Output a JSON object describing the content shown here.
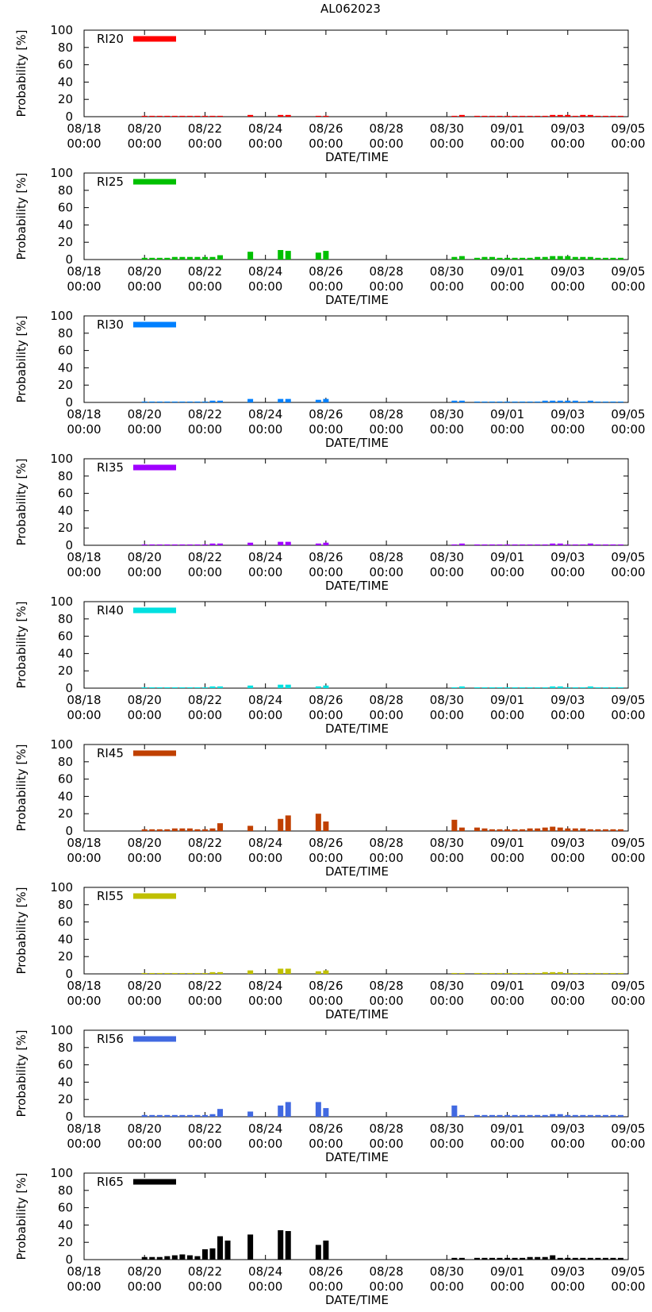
{
  "page": {
    "title": "AL062023"
  },
  "axes": {
    "xlabel": "DATE/TIME",
    "ylabel": "Probability [%]",
    "ylim": [
      0,
      100
    ],
    "yticks": [
      0,
      20,
      40,
      60,
      80,
      100
    ],
    "xrange_days": [
      0,
      18
    ],
    "xticks": [
      {
        "day": 0,
        "date": "08/18",
        "time": "00:00"
      },
      {
        "day": 2,
        "date": "08/20",
        "time": "00:00"
      },
      {
        "day": 4,
        "date": "08/22",
        "time": "00:00"
      },
      {
        "day": 6,
        "date": "08/24",
        "time": "00:00"
      },
      {
        "day": 8,
        "date": "08/26",
        "time": "00:00"
      },
      {
        "day": 10,
        "date": "08/28",
        "time": "00:00"
      },
      {
        "day": 12,
        "date": "08/30",
        "time": "00:00"
      },
      {
        "day": 14,
        "date": "09/01",
        "time": "00:00"
      },
      {
        "day": 16,
        "date": "09/03",
        "time": "00:00"
      },
      {
        "day": 18,
        "date": "09/05",
        "time": "00:00"
      }
    ]
  },
  "chart_data": [
    {
      "type": "bar",
      "label": "RI20",
      "color": "#ff0000",
      "x_days": [
        2.0,
        2.25,
        2.5,
        2.75,
        3.0,
        3.25,
        3.5,
        3.75,
        4.0,
        4.25,
        4.5,
        5.5,
        6.5,
        6.75,
        7.75,
        8.0,
        12.25,
        12.5,
        13.0,
        13.25,
        13.5,
        13.75,
        14.0,
        14.25,
        14.5,
        14.75,
        15.0,
        15.25,
        15.5,
        15.75,
        16.0,
        16.25,
        16.5,
        16.75,
        17.0,
        17.25,
        17.5,
        17.75
      ],
      "values": [
        1,
        1,
        1,
        1,
        1,
        1,
        1,
        1,
        1,
        1,
        1,
        2,
        2,
        2,
        1,
        1,
        1,
        2,
        1,
        1,
        1,
        1,
        1,
        1,
        1,
        1,
        1,
        1,
        2,
        2,
        2,
        1,
        2,
        2,
        1,
        1,
        1,
        1
      ]
    },
    {
      "type": "bar",
      "label": "RI25",
      "color": "#00c000",
      "x_days": [
        2.0,
        2.25,
        2.5,
        2.75,
        3.0,
        3.25,
        3.5,
        3.75,
        4.0,
        4.25,
        4.5,
        5.5,
        6.5,
        6.75,
        7.75,
        8.0,
        12.25,
        12.5,
        13.0,
        13.25,
        13.5,
        13.75,
        14.0,
        14.25,
        14.5,
        14.75,
        15.0,
        15.25,
        15.5,
        15.75,
        16.0,
        16.25,
        16.5,
        16.75,
        17.0,
        17.25,
        17.5,
        17.75
      ],
      "values": [
        2,
        2,
        2,
        2,
        3,
        3,
        3,
        3,
        3,
        3,
        5,
        9,
        11,
        10,
        8,
        10,
        3,
        4,
        2,
        3,
        3,
        2,
        2,
        2,
        2,
        2,
        3,
        3,
        4,
        4,
        4,
        3,
        3,
        3,
        2,
        2,
        2,
        2
      ]
    },
    {
      "type": "bar",
      "label": "RI30",
      "color": "#0080ff",
      "x_days": [
        2.0,
        2.25,
        2.5,
        2.75,
        3.0,
        3.25,
        3.5,
        3.75,
        4.0,
        4.25,
        4.5,
        5.5,
        6.5,
        6.75,
        7.75,
        8.0,
        12.25,
        12.5,
        13.0,
        13.25,
        13.5,
        13.75,
        14.0,
        14.25,
        14.5,
        14.75,
        15.0,
        15.25,
        15.5,
        15.75,
        16.0,
        16.25,
        16.5,
        16.75,
        17.0,
        17.25,
        17.5,
        17.75
      ],
      "values": [
        1,
        1,
        1,
        1,
        1,
        1,
        1,
        1,
        1,
        2,
        2,
        4,
        4,
        4,
        3,
        4,
        2,
        2,
        1,
        1,
        1,
        1,
        1,
        1,
        1,
        1,
        1,
        2,
        2,
        2,
        2,
        2,
        1,
        2,
        1,
        1,
        1,
        1
      ]
    },
    {
      "type": "bar",
      "label": "RI35",
      "color": "#a000ff",
      "x_days": [
        2.0,
        2.25,
        2.5,
        2.75,
        3.0,
        3.25,
        3.5,
        3.75,
        4.0,
        4.25,
        4.5,
        5.5,
        6.5,
        6.75,
        7.75,
        8.0,
        12.25,
        12.5,
        13.0,
        13.25,
        13.5,
        13.75,
        14.0,
        14.25,
        14.5,
        14.75,
        15.0,
        15.25,
        15.5,
        15.75,
        16.0,
        16.25,
        16.5,
        16.75,
        17.0,
        17.25,
        17.5,
        17.75
      ],
      "values": [
        1,
        1,
        1,
        1,
        1,
        1,
        1,
        1,
        1,
        2,
        2,
        3,
        4,
        4,
        2,
        3,
        1,
        2,
        1,
        1,
        1,
        1,
        1,
        1,
        1,
        1,
        1,
        1,
        2,
        2,
        1,
        1,
        1,
        2,
        1,
        1,
        1,
        1
      ]
    },
    {
      "type": "bar",
      "label": "RI40",
      "color": "#00e0e0",
      "x_days": [
        2.0,
        2.25,
        2.5,
        2.75,
        3.0,
        3.25,
        3.5,
        3.75,
        4.0,
        4.25,
        4.5,
        5.5,
        6.5,
        6.75,
        7.75,
        8.0,
        12.25,
        12.5,
        13.0,
        13.25,
        13.5,
        13.75,
        14.0,
        14.25,
        14.5,
        14.75,
        15.0,
        15.25,
        15.5,
        15.75,
        16.0,
        16.25,
        16.5,
        16.75,
        17.0,
        17.25,
        17.5,
        17.75
      ],
      "values": [
        1,
        1,
        1,
        1,
        1,
        1,
        1,
        1,
        1,
        2,
        2,
        3,
        4,
        4,
        2,
        3,
        1,
        2,
        1,
        1,
        1,
        1,
        1,
        1,
        1,
        1,
        1,
        1,
        2,
        2,
        1,
        1,
        1,
        2,
        1,
        1,
        1,
        1
      ]
    },
    {
      "type": "bar",
      "label": "RI45",
      "color": "#c04000",
      "x_days": [
        2.0,
        2.25,
        2.5,
        2.75,
        3.0,
        3.25,
        3.5,
        3.75,
        4.0,
        4.25,
        4.5,
        5.5,
        6.5,
        6.75,
        7.75,
        8.0,
        12.25,
        12.5,
        13.0,
        13.25,
        13.5,
        13.75,
        14.0,
        14.25,
        14.5,
        14.75,
        15.0,
        15.25,
        15.5,
        15.75,
        16.0,
        16.25,
        16.5,
        16.75,
        17.0,
        17.25,
        17.5,
        17.75
      ],
      "values": [
        2,
        2,
        2,
        2,
        3,
        3,
        3,
        2,
        2,
        3,
        9,
        6,
        14,
        18,
        20,
        11,
        13,
        4,
        4,
        3,
        2,
        2,
        2,
        2,
        2,
        3,
        3,
        4,
        5,
        4,
        3,
        3,
        3,
        2,
        2,
        2,
        2,
        2
      ]
    },
    {
      "type": "bar",
      "label": "RI55",
      "color": "#c0c000",
      "x_days": [
        2.0,
        2.25,
        2.5,
        2.75,
        3.0,
        3.25,
        3.5,
        3.75,
        4.0,
        4.25,
        4.5,
        5.5,
        6.5,
        6.75,
        7.75,
        8.0,
        12.25,
        12.5,
        13.0,
        13.25,
        13.5,
        13.75,
        14.0,
        14.25,
        14.5,
        14.75,
        15.0,
        15.25,
        15.5,
        15.75,
        16.0,
        16.25,
        16.5,
        16.75,
        17.0,
        17.25,
        17.5,
        17.75
      ],
      "values": [
        1,
        1,
        1,
        1,
        1,
        1,
        1,
        1,
        1,
        2,
        2,
        4,
        6,
        6,
        3,
        4,
        1,
        1,
        1,
        1,
        1,
        1,
        1,
        1,
        1,
        1,
        1,
        2,
        2,
        2,
        1,
        1,
        1,
        1,
        1,
        1,
        1,
        1
      ]
    },
    {
      "type": "bar",
      "label": "RI56",
      "color": "#4169e1",
      "x_days": [
        2.0,
        2.25,
        2.5,
        2.75,
        3.0,
        3.25,
        3.5,
        3.75,
        4.0,
        4.25,
        4.5,
        5.5,
        6.5,
        6.75,
        7.75,
        8.0,
        12.25,
        12.5,
        13.0,
        13.25,
        13.5,
        13.75,
        14.0,
        14.25,
        14.5,
        14.75,
        15.0,
        15.25,
        15.5,
        15.75,
        16.0,
        16.25,
        16.5,
        16.75,
        17.0,
        17.25,
        17.5,
        17.75
      ],
      "values": [
        2,
        2,
        2,
        2,
        2,
        2,
        2,
        2,
        2,
        3,
        9,
        6,
        13,
        17,
        17,
        10,
        13,
        2,
        2,
        2,
        2,
        2,
        2,
        2,
        2,
        2,
        2,
        2,
        3,
        3,
        2,
        2,
        2,
        2,
        2,
        2,
        2,
        2
      ]
    },
    {
      "type": "bar",
      "label": "RI65",
      "color": "#000000",
      "x_days": [
        2.0,
        2.25,
        2.5,
        2.75,
        3.0,
        3.25,
        3.5,
        3.75,
        4.0,
        4.25,
        4.5,
        4.75,
        5.5,
        6.5,
        6.75,
        7.75,
        8.0,
        12.25,
        12.5,
        13.0,
        13.25,
        13.5,
        13.75,
        14.0,
        14.25,
        14.5,
        14.75,
        15.0,
        15.25,
        15.5,
        15.75,
        16.0,
        16.25,
        16.5,
        16.75,
        17.0,
        17.25,
        17.5,
        17.75
      ],
      "values": [
        3,
        3,
        3,
        4,
        5,
        6,
        5,
        4,
        12,
        13,
        27,
        22,
        29,
        34,
        33,
        17,
        22,
        2,
        2,
        2,
        2,
        2,
        2,
        2,
        2,
        2,
        3,
        3,
        3,
        5,
        2,
        2,
        2,
        2,
        2,
        2,
        2,
        2,
        2
      ]
    }
  ]
}
